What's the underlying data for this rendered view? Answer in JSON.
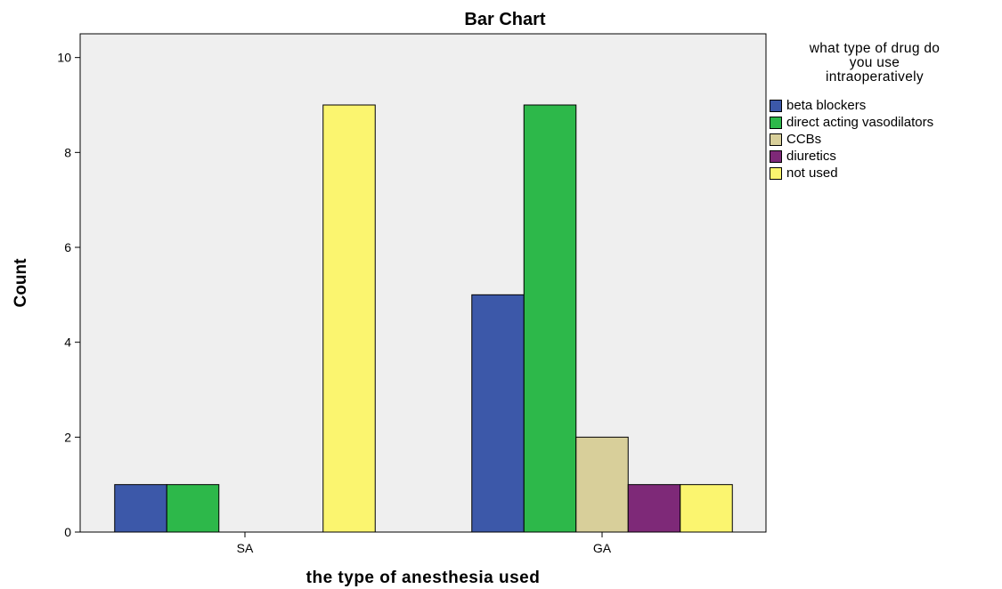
{
  "chart_data": {
    "type": "bar",
    "title": "Bar Chart",
    "xlabel": "the type of anesthesia used",
    "ylabel": "Count",
    "categories": [
      "SA",
      "GA"
    ],
    "ylim": [
      0,
      10.5
    ],
    "yticks": [
      0,
      2,
      4,
      6,
      8,
      10
    ],
    "grid": false,
    "legend_title": "what type of drug do you use intraoperatively",
    "legend_placement": "right",
    "series": [
      {
        "name": "beta blockers",
        "color": "#3c58a9",
        "values": [
          1,
          5
        ]
      },
      {
        "name": "direct acting vasodilators",
        "color": "#2db84a",
        "values": [
          1,
          9
        ]
      },
      {
        "name": "CCBs",
        "color": "#d8cf9a",
        "values": [
          0,
          2
        ]
      },
      {
        "name": "diuretics",
        "color": "#7e2978",
        "values": [
          0,
          1
        ]
      },
      {
        "name": "not used",
        "color": "#fbf56f",
        "values": [
          9,
          1
        ]
      }
    ],
    "plot_background": "#efefef"
  },
  "legend": {
    "title_lines": [
      "what type of drug do",
      "you use",
      "intraoperatively"
    ]
  }
}
